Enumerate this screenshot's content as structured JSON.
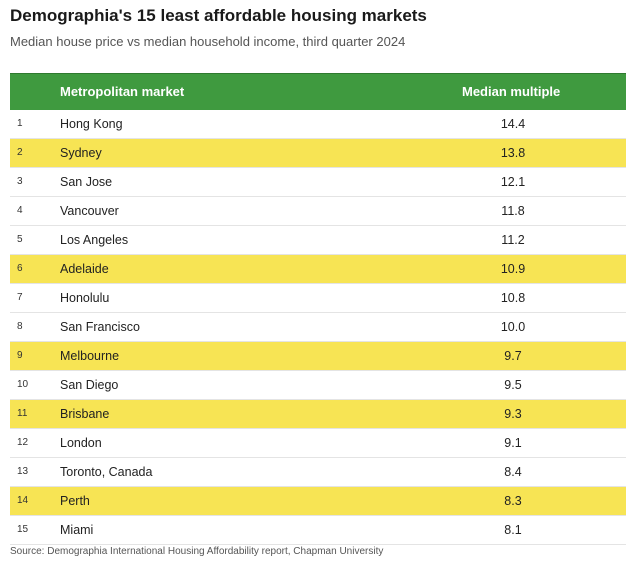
{
  "title": "Demographia's 15 least affordable housing markets",
  "subtitle": "Median house price vs median household income, third quarter 2024",
  "source": "Source: Demographia International Housing Affordability report, Chapman University",
  "highlight_color": "#f7e454",
  "header_color": "#3f9a3f",
  "chart_data": {
    "type": "table",
    "columns": [
      "Metropolitan market",
      "Median multiple"
    ],
    "rows": [
      {
        "rank": "1",
        "market": "Hong Kong",
        "value": "14.4",
        "highlighted": false
      },
      {
        "rank": "2",
        "market": "Sydney",
        "value": "13.8",
        "highlighted": true
      },
      {
        "rank": "3",
        "market": "San Jose",
        "value": "12.1",
        "highlighted": false
      },
      {
        "rank": "4",
        "market": "Vancouver",
        "value": "11.8",
        "highlighted": false
      },
      {
        "rank": "5",
        "market": "Los Angeles",
        "value": "11.2",
        "highlighted": false
      },
      {
        "rank": "6",
        "market": "Adelaide",
        "value": "10.9",
        "highlighted": true
      },
      {
        "rank": "7",
        "market": "Honolulu",
        "value": "10.8",
        "highlighted": false
      },
      {
        "rank": "8",
        "market": "San Francisco",
        "value": "10.0",
        "highlighted": false
      },
      {
        "rank": "9",
        "market": "Melbourne",
        "value": "9.7",
        "highlighted": true
      },
      {
        "rank": "10",
        "market": "San Diego",
        "value": "9.5",
        "highlighted": false
      },
      {
        "rank": "11",
        "market": "Brisbane",
        "value": "9.3",
        "highlighted": true
      },
      {
        "rank": "12",
        "market": "London",
        "value": "9.1",
        "highlighted": false
      },
      {
        "rank": "13",
        "market": "Toronto, Canada",
        "value": "8.4",
        "highlighted": false
      },
      {
        "rank": "14",
        "market": "Perth",
        "value": "8.3",
        "highlighted": true
      },
      {
        "rank": "15",
        "market": "Miami",
        "value": "8.1",
        "highlighted": false
      }
    ]
  }
}
